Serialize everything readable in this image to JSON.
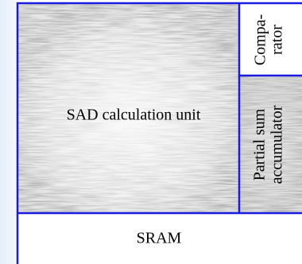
{
  "sad_unit": {
    "label": "SAD calculation unit"
  },
  "comparator": {
    "lines": [
      "Compa-",
      "rator"
    ]
  },
  "accumulator": {
    "lines": [
      "Partial sum",
      "accumulator"
    ]
  },
  "sram": {
    "label": "SRAM"
  }
}
